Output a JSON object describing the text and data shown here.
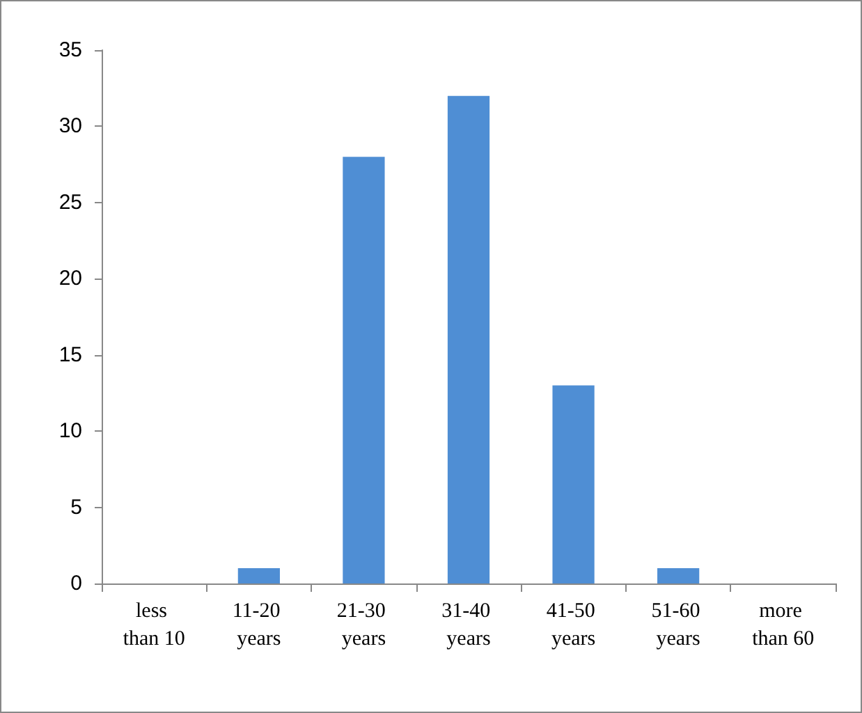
{
  "chart_data": {
    "type": "bar",
    "categories": [
      "less than 10",
      "11-20 years",
      "21-30 years",
      "31-40 years",
      "41-50 years",
      "51-60 years",
      "more than 60"
    ],
    "values": [
      0,
      1,
      28,
      32,
      13,
      1,
      0
    ],
    "color": "#4f8ed4",
    "ylim": [
      0,
      35
    ],
    "yticks": [
      0,
      5,
      10,
      15,
      20,
      25,
      30,
      35
    ],
    "grid": false
  }
}
